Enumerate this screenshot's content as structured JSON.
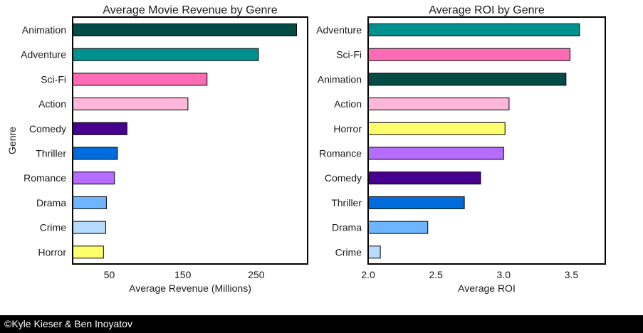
{
  "chart_data": [
    {
      "type": "bar",
      "orientation": "horizontal",
      "title": "Average Movie Revenue by Genre",
      "xlabel": "Average Revenue (Millions)",
      "ylabel": "Genre",
      "xlim": [
        0,
        320
      ],
      "xticks": [
        50,
        150,
        250
      ],
      "xtick_labels": [
        "50",
        "150",
        "250"
      ],
      "categories": [
        "Animation",
        "Adventure",
        "Sci-Fi",
        "Action",
        "Comedy",
        "Thriller",
        "Romance",
        "Drama",
        "Crime",
        "Horror"
      ],
      "values": [
        305,
        253,
        183,
        157,
        74,
        61,
        57,
        46,
        45,
        42
      ],
      "colors": [
        "#034c46",
        "#009090",
        "#ff6cb6",
        "#ffb6db",
        "#480091",
        "#006cdb",
        "#b66cff",
        "#6db6ff",
        "#b6dbff",
        "#ffff6d"
      ],
      "grid": false
    },
    {
      "type": "bar",
      "orientation": "horizontal",
      "title": "Average ROI by Genre",
      "xlabel": "Average ROI",
      "ylabel": "",
      "xlim": [
        2.0,
        3.75
      ],
      "xticks": [
        2.0,
        2.5,
        3.0,
        3.5
      ],
      "xtick_labels": [
        "2.0",
        "2.5",
        "3.0",
        "3.5"
      ],
      "categories": [
        "Adventure",
        "Sci-Fi",
        "Animation",
        "Action",
        "Horror",
        "Romance",
        "Comedy",
        "Thriller",
        "Drama",
        "Crime"
      ],
      "values": [
        3.56,
        3.49,
        3.46,
        3.04,
        3.01,
        3.0,
        2.83,
        2.71,
        2.44,
        2.09
      ],
      "colors": [
        "#009090",
        "#ff6cb6",
        "#034c46",
        "#ffb6db",
        "#ffff6d",
        "#b66cff",
        "#480091",
        "#006cdb",
        "#6db6ff",
        "#b6dbff"
      ],
      "grid": false
    }
  ],
  "footer": {
    "credit": "©Kyle Kieser & Ben Inoyatov"
  }
}
